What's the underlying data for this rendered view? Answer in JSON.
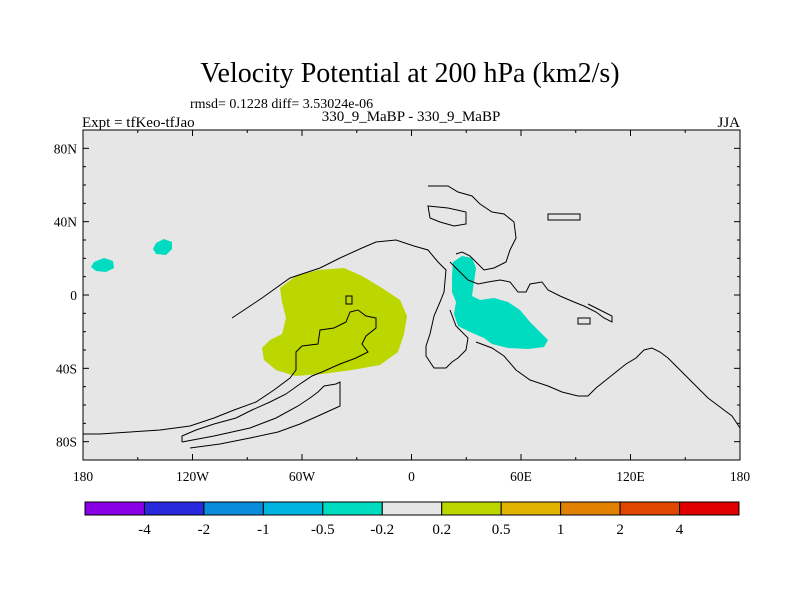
{
  "title": "Velocity Potential at 200 hPa (km2/s)",
  "stats": "rmsd= 0.1228 diff= 3.53024e-06",
  "left_label": "Expt = tfKeo-tfJao",
  "center_label": "330_9_MaBP - 330_9_MaBP",
  "right_label": "JJA",
  "colors": {
    "background_field": "#e6e6e6",
    "positive_anomaly": "#bcd600",
    "negative_anomaly": "#00dcc0"
  },
  "map": {
    "projection": "cylindrical equidistant",
    "lon_range": [
      -180,
      180
    ],
    "lat_range": [
      -90,
      90
    ],
    "lat_ticks": [
      {
        "value": 80,
        "label": "80N"
      },
      {
        "value": 40,
        "label": "40N"
      },
      {
        "value": 0,
        "label": "0"
      },
      {
        "value": -40,
        "label": "40S"
      },
      {
        "value": -80,
        "label": "80S"
      }
    ],
    "lon_ticks": [
      {
        "value": -180,
        "label": "180"
      },
      {
        "value": -120,
        "label": "120W"
      },
      {
        "value": -60,
        "label": "60W"
      },
      {
        "value": 0,
        "label": "0"
      },
      {
        "value": 60,
        "label": "60E"
      },
      {
        "value": 120,
        "label": "120E"
      },
      {
        "value": 180,
        "label": "180"
      }
    ]
  },
  "colorbar": {
    "colors": [
      "#8a00e6",
      "#2828dc",
      "#0a8cdc",
      "#00b4e0",
      "#00dcc0",
      "#e6e6e6",
      "#bcd600",
      "#e0b400",
      "#e08200",
      "#e04600",
      "#e00000"
    ],
    "labels": [
      "-4",
      "-2",
      "-1",
      "-0.5",
      "-0.2",
      "0.2",
      "0.5",
      "1",
      "2",
      "4"
    ]
  }
}
